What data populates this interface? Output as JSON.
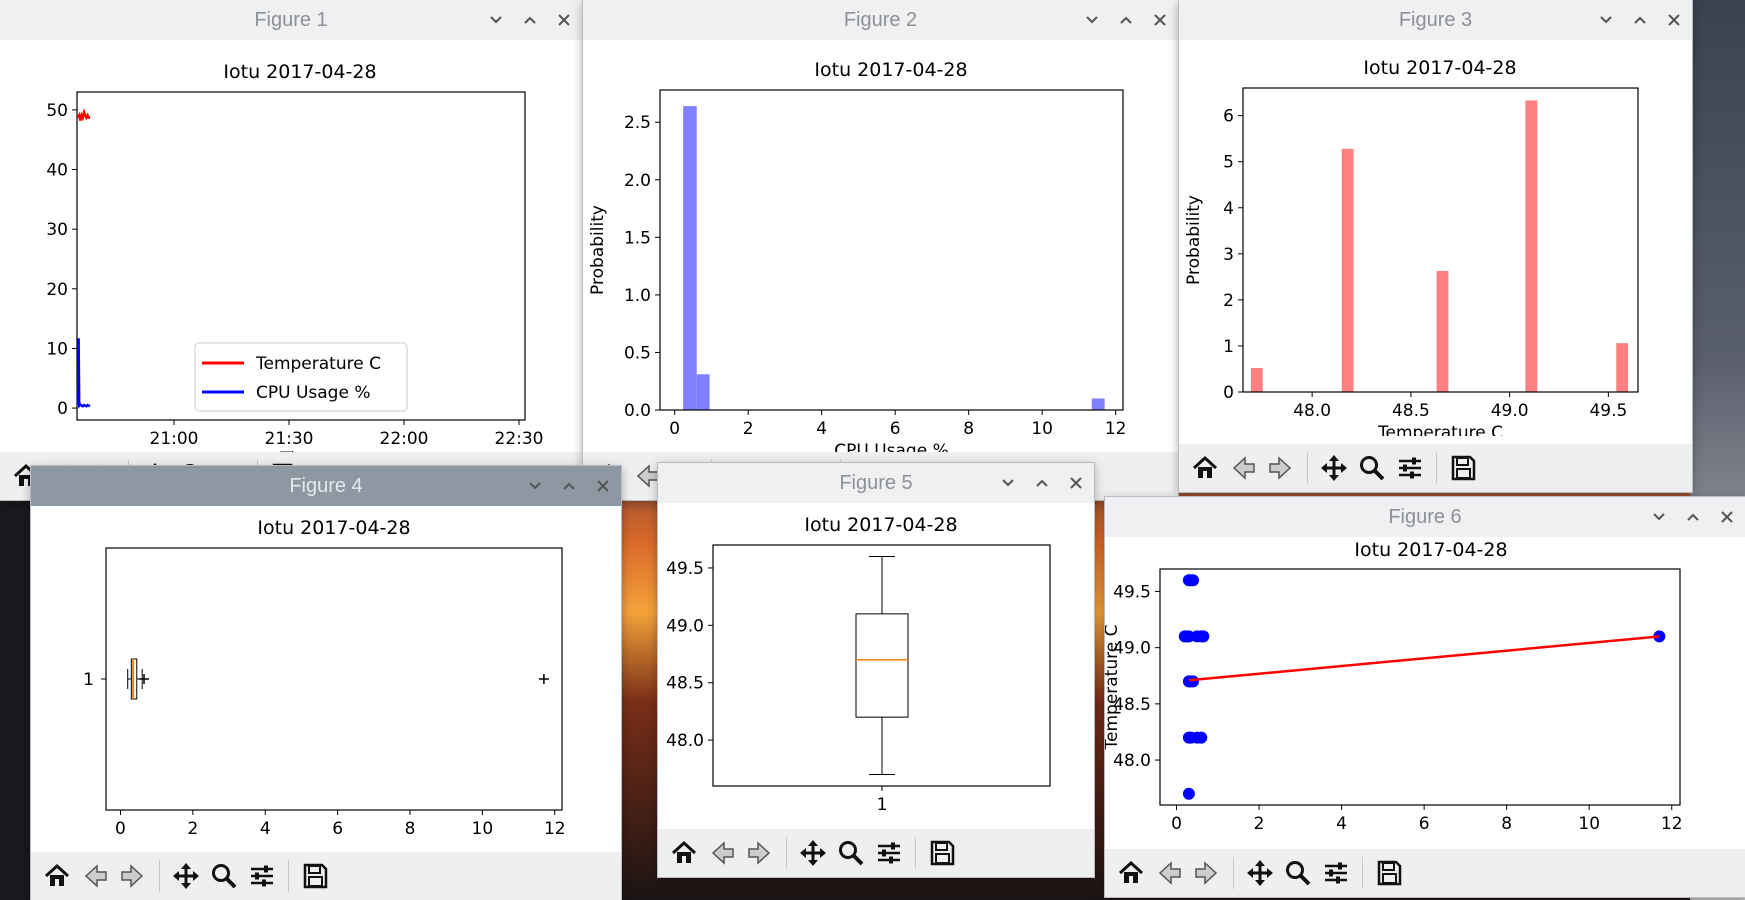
{
  "windows": [
    {
      "id": "fig1",
      "title": "Figure 1",
      "active": false
    },
    {
      "id": "fig2",
      "title": "Figure 2",
      "active": false
    },
    {
      "id": "fig3",
      "title": "Figure 3",
      "active": false
    },
    {
      "id": "fig4",
      "title": "Figure 4",
      "active": true
    },
    {
      "id": "fig5",
      "title": "Figure 5",
      "active": false
    },
    {
      "id": "fig6",
      "title": "Figure 6",
      "active": false
    }
  ],
  "toolbar_icons": [
    "home-icon",
    "back-arrow-icon",
    "forward-arrow-icon",
    "pan-icon",
    "zoom-icon",
    "configure-subplots-icon",
    "save-icon"
  ],
  "chart_data": [
    {
      "figure": "Figure 1",
      "type": "line",
      "title": "Iotu 2017-04-28",
      "xlabel": "Time",
      "ylabel": "",
      "x_ticks": [
        "21:00",
        "21:30",
        "22:00",
        "22:30"
      ],
      "y_ticks": [
        0,
        10,
        20,
        30,
        40,
        50
      ],
      "ylim": [
        -2,
        53
      ],
      "legend_position": "lower-center",
      "series": [
        {
          "name": "Temperature C",
          "color": "#ff0000",
          "x_minutes": [
            0,
            1,
            2,
            3,
            4,
            5,
            6,
            7,
            8,
            9,
            10
          ],
          "values": [
            48.7,
            49.1,
            48.2,
            49.1,
            48.7,
            49.6,
            49.1,
            48.7,
            49.1,
            48.7,
            48.7
          ]
        },
        {
          "name": "CPU Usage %",
          "color": "#0000ff",
          "x_minutes": [
            0,
            0.5,
            1,
            2,
            3,
            4,
            5,
            6,
            7,
            8,
            9,
            10
          ],
          "values": [
            0.5,
            11.7,
            0.4,
            0.6,
            0.4,
            0.3,
            0.5,
            0.4,
            0.3,
            0.5,
            0.4,
            0.3
          ]
        }
      ]
    },
    {
      "figure": "Figure 2",
      "type": "bar",
      "title": "Iotu 2017-04-28",
      "xlabel": "CPU Usage %",
      "ylabel": "Probability",
      "color": "#8080ff",
      "x_ticks": [
        0,
        2,
        4,
        6,
        8,
        10,
        12
      ],
      "y_ticks": [
        0.0,
        0.5,
        1.0,
        1.5,
        2.0,
        2.5
      ],
      "xlim": [
        -0.4,
        12.2
      ],
      "ylim": [
        0,
        2.78
      ],
      "bins": [
        {
          "x0": 0.23,
          "x1": 0.6,
          "value": 2.64
        },
        {
          "x0": 0.6,
          "x1": 0.95,
          "value": 0.31
        },
        {
          "x0": 11.35,
          "x1": 11.7,
          "value": 0.1
        }
      ]
    },
    {
      "figure": "Figure 3",
      "type": "bar",
      "title": "Iotu 2017-04-28",
      "xlabel": "Temperature C",
      "ylabel": "Probability",
      "color": "#ff8080",
      "x_ticks": [
        48.0,
        48.5,
        49.0,
        49.5
      ],
      "y_ticks": [
        0,
        1,
        2,
        3,
        4,
        5,
        6
      ],
      "xlim": [
        47.65,
        49.65
      ],
      "ylim": [
        0,
        6.6
      ],
      "bins": [
        {
          "x0": 47.69,
          "x1": 47.75,
          "value": 0.52
        },
        {
          "x0": 48.15,
          "x1": 48.21,
          "value": 5.28
        },
        {
          "x0": 48.63,
          "x1": 48.69,
          "value": 2.63
        },
        {
          "x0": 49.08,
          "x1": 49.14,
          "value": 6.33
        },
        {
          "x0": 49.54,
          "x1": 49.6,
          "value": 1.06
        }
      ]
    },
    {
      "figure": "Figure 4",
      "type": "box",
      "title": "Iotu 2017-04-28",
      "orientation": "horizontal",
      "category_label": "1",
      "x_ticks": [
        0,
        2,
        4,
        6,
        8,
        10,
        12
      ],
      "xlim": [
        -0.4,
        12.2
      ],
      "box": {
        "q1": 0.3,
        "median": 0.35,
        "q3": 0.45,
        "whisker_low": 0.2,
        "whisker_high": 0.6
      },
      "fliers": [
        0.65,
        11.7
      ]
    },
    {
      "figure": "Figure 5",
      "type": "box",
      "title": "Iotu 2017-04-28",
      "orientation": "vertical",
      "category_label": "1",
      "y_ticks": [
        48.0,
        48.5,
        49.0,
        49.5
      ],
      "ylim": [
        47.6,
        49.7
      ],
      "box": {
        "q1": 48.2,
        "median": 48.7,
        "q3": 49.1,
        "whisker_low": 47.7,
        "whisker_high": 49.6
      }
    },
    {
      "figure": "Figure 6",
      "type": "scatter",
      "title": "Iotu 2017-04-28",
      "xlabel": "",
      "ylabel": "Temperature C",
      "x_ticks": [
        0,
        2,
        4,
        6,
        8,
        10,
        12
      ],
      "y_ticks": [
        48.0,
        48.5,
        49.0,
        49.5
      ],
      "xlim": [
        -0.4,
        12.2
      ],
      "ylim": [
        47.6,
        49.7
      ],
      "points_x": [
        0.3,
        0.35,
        0.4,
        0.2,
        0.25,
        0.3,
        0.5,
        0.6,
        0.65,
        0.3,
        0.35,
        0.4,
        0.3,
        0.35,
        0.5,
        0.6,
        0.3,
        11.7
      ],
      "points_y": [
        49.6,
        49.6,
        49.6,
        49.1,
        49.1,
        49.1,
        49.1,
        49.1,
        49.1,
        48.7,
        48.7,
        48.7,
        48.2,
        48.2,
        48.2,
        48.2,
        47.7,
        49.1
      ],
      "trend": {
        "x": [
          0.3,
          11.7
        ],
        "y": [
          48.71,
          49.1
        ],
        "color": "#ff0000"
      },
      "point_color": "#0000ff"
    }
  ]
}
